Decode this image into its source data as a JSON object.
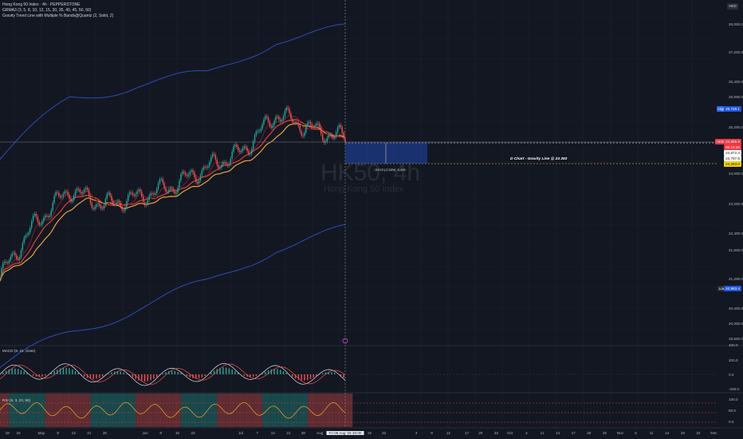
{
  "legend": {
    "symbol": "Hong Kong 50 Index · 4h · PEPPERSTONE",
    "indicator1": "GRMA3 (3, 5, 8, 10, 12, 15, 30, 35, 40, 45, 50, 60)",
    "indicator2": "Gravity Trend Line with Multiple % Bands@Quantz (2, Solid, 2)"
  },
  "currency_button": "HKD",
  "watermark": {
    "ticker": "HK50, 4h",
    "name": "Hong Kong 50 Index"
  },
  "annotation": {
    "gravity_line_text": "D Chart - Gravity Line @ 24 283",
    "measure_text": "-540.5 (-2.18%) -5,408"
  },
  "price_axis": {
    "ticks": [
      "28,000.0",
      "27,200.0",
      "26,400.0",
      "25,600.0",
      "25,200.0",
      "24,000.0",
      "23,200.0",
      "22,400.0",
      "21,600.0",
      "21,200.0",
      "20,400.0",
      "20,000.0",
      "19,600.0"
    ],
    "high_label": "High",
    "high_value": "25,729.1",
    "low_label": "Low",
    "low_value": "20,983.4",
    "symbol_tag": "HK50",
    "last_price": "24,865.9",
    "countdown": "00:13:20",
    "price_2": "24,872.4",
    "price_3": "24,787.6",
    "gravity_price": "24,283.0"
  },
  "macd": {
    "label": "MACD (9, 21, close)",
    "ticks": [
      "400.0",
      "200.0",
      "0.0",
      "-200.0"
    ]
  },
  "rsi": {
    "label": "RSI (9, 3, 20, 80)",
    "ticks": [
      "100.0",
      "50.0",
      "0.0"
    ]
  },
  "time_axis": {
    "labels": [
      "18",
      "25",
      "May",
      "8",
      "13",
      "21",
      "26",
      "Jun",
      "9",
      "16",
      "23",
      "Jul",
      "7",
      "14",
      "21",
      "28",
      "Aug",
      "19",
      "22",
      "Sep",
      "4",
      "8",
      "12",
      "17",
      "20",
      "23",
      "Oct",
      "4",
      "11",
      "14",
      "17",
      "20",
      "25",
      "Nov",
      "6",
      "11",
      "14",
      "19",
      "22",
      "Dec"
    ],
    "cursor_label": "Fri 08 Aug '25   20:00"
  },
  "chart_data": {
    "type": "line",
    "title": "Hong Kong 50 Index · 4h · PEPPERSTONE",
    "y_range": [
      19400,
      28300
    ],
    "series": [
      {
        "name": "Hong Kong 50 Index (close, approx.)",
        "x": [
          "Apr 18",
          "May 1",
          "May 13",
          "May 26",
          "Jun 1",
          "Jun 16",
          "Jul 1",
          "Jul 14",
          "Jul 22",
          "Jul 28",
          "Aug 8"
        ],
        "values": [
          21200,
          22600,
          23500,
          23100,
          23300,
          23600,
          24100,
          24500,
          25500,
          25100,
          24866
        ]
      },
      {
        "name": "Gravity upper band (approx.)",
        "x": [
          "Apr 18",
          "May 13",
          "Jun 1",
          "Jul 1",
          "Jul 22",
          "Aug 8"
        ],
        "values": [
          24300,
          25900,
          26300,
          26500,
          27500,
          27700
        ]
      },
      {
        "name": "Gravity lower band (approx.)",
        "x": [
          "Apr 18",
          "May 13",
          "Jun 1",
          "Jul 1",
          "Jul 22",
          "Aug 8"
        ],
        "values": [
          18800,
          19700,
          20400,
          21000,
          22000,
          22400
        ]
      }
    ],
    "gravity_line": 24283,
    "high": 25729.1,
    "low": 20983.4
  },
  "colors": {
    "background": "#131722",
    "candle_up": "#26a69a",
    "candle_down": "#ef5350",
    "band": "#2f4bb4",
    "last_price": "#f23645",
    "gravity": "#f5d400"
  }
}
